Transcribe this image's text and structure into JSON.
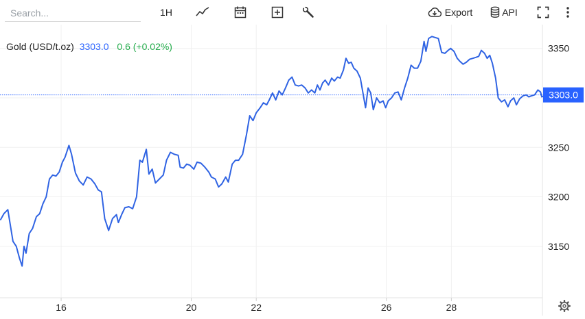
{
  "toolbar": {
    "search_placeholder": "Search...",
    "interval_label": "1H",
    "export_label": "Export",
    "api_label": "API",
    "icons": [
      "line-chart-icon",
      "calendar-icon",
      "add-box-icon",
      "wrench-icon",
      "cloud-download-icon",
      "database-icon",
      "fullscreen-icon",
      "more-vert-icon",
      "gear-icon"
    ]
  },
  "legend": {
    "symbol": "Gold (USD/t.oz)",
    "price": "3303.0",
    "change": "0.6 (+0.02%)",
    "price_color": "#2962ff",
    "change_color": "#22ab4a"
  },
  "current_price_label": "3303.0",
  "colors": {
    "line": "#2f63e3",
    "badge": "#2962ff",
    "grid": "#f0f0f0"
  },
  "chart_data": {
    "type": "line",
    "title": "",
    "xlabel": "",
    "ylabel": "",
    "grid": true,
    "current_value": 3303.0,
    "ylim": [
      3098,
      3374
    ],
    "xlim": [
      14.12,
      30.8
    ],
    "x_ticks": [
      16,
      20,
      22,
      26,
      28
    ],
    "x_tick_labels": [
      "16",
      "20",
      "22",
      "26",
      "28"
    ],
    "y_ticks": [
      3150,
      3200,
      3250,
      3300,
      3350
    ],
    "y_tick_labels": [
      "3150",
      "3200",
      "3250",
      "",
      "3350"
    ],
    "series": [
      {
        "values": [
          [
            14.14,
            3177
          ],
          [
            14.24,
            3183
          ],
          [
            14.36,
            3187
          ],
          [
            14.52,
            3155
          ],
          [
            14.62,
            3150
          ],
          [
            14.72,
            3138
          ],
          [
            14.8,
            3130
          ],
          [
            14.86,
            3150
          ],
          [
            14.92,
            3143
          ],
          [
            15.02,
            3163
          ],
          [
            15.12,
            3168
          ],
          [
            15.24,
            3180
          ],
          [
            15.34,
            3183
          ],
          [
            15.44,
            3193
          ],
          [
            15.54,
            3200
          ],
          [
            15.64,
            3218
          ],
          [
            15.74,
            3222
          ],
          [
            15.84,
            3221
          ],
          [
            15.94,
            3225
          ],
          [
            16.04,
            3235
          ],
          [
            16.12,
            3240
          ],
          [
            16.24,
            3252
          ],
          [
            16.32,
            3243
          ],
          [
            16.44,
            3224
          ],
          [
            16.56,
            3216
          ],
          [
            16.68,
            3212
          ],
          [
            16.8,
            3220
          ],
          [
            16.92,
            3218
          ],
          [
            17.04,
            3213
          ],
          [
            17.14,
            3207
          ],
          [
            17.24,
            3205
          ],
          [
            17.34,
            3178
          ],
          [
            17.46,
            3166
          ],
          [
            17.58,
            3178
          ],
          [
            17.7,
            3182
          ],
          [
            17.76,
            3174
          ],
          [
            17.86,
            3182
          ],
          [
            17.96,
            3189
          ],
          [
            18.08,
            3190
          ],
          [
            18.2,
            3188
          ],
          [
            18.32,
            3200
          ],
          [
            18.42,
            3237
          ],
          [
            18.5,
            3235
          ],
          [
            18.62,
            3248
          ],
          [
            18.7,
            3223
          ],
          [
            18.8,
            3228
          ],
          [
            18.9,
            3214
          ],
          [
            19.02,
            3218
          ],
          [
            19.14,
            3222
          ],
          [
            19.24,
            3237
          ],
          [
            19.36,
            3245
          ],
          [
            19.48,
            3243
          ],
          [
            19.6,
            3242
          ],
          [
            19.66,
            3230
          ],
          [
            19.76,
            3229
          ],
          [
            19.86,
            3233
          ],
          [
            19.96,
            3232
          ],
          [
            20.08,
            3228
          ],
          [
            20.18,
            3235
          ],
          [
            20.3,
            3234
          ],
          [
            20.42,
            3230
          ],
          [
            20.54,
            3225
          ],
          [
            20.62,
            3220
          ],
          [
            20.74,
            3218
          ],
          [
            20.84,
            3210
          ],
          [
            20.94,
            3213
          ],
          [
            21.06,
            3220
          ],
          [
            21.14,
            3215
          ],
          [
            21.26,
            3233
          ],
          [
            21.36,
            3237
          ],
          [
            21.46,
            3237
          ],
          [
            21.58,
            3243
          ],
          [
            21.7,
            3263
          ],
          [
            21.8,
            3282
          ],
          [
            21.9,
            3277
          ],
          [
            22.0,
            3285
          ],
          [
            22.12,
            3290
          ],
          [
            22.22,
            3295
          ],
          [
            22.32,
            3293
          ],
          [
            22.4,
            3298
          ],
          [
            22.5,
            3305
          ],
          [
            22.6,
            3298
          ],
          [
            22.7,
            3307
          ],
          [
            22.8,
            3303
          ],
          [
            22.9,
            3310
          ],
          [
            23.0,
            3318
          ],
          [
            23.1,
            3321
          ],
          [
            23.2,
            3313
          ],
          [
            23.3,
            3312
          ],
          [
            23.4,
            3313
          ],
          [
            23.5,
            3310
          ],
          [
            23.6,
            3305
          ],
          [
            23.7,
            3308
          ],
          [
            23.8,
            3305
          ],
          [
            23.88,
            3313
          ],
          [
            23.96,
            3308
          ],
          [
            24.04,
            3315
          ],
          [
            24.12,
            3318
          ],
          [
            24.22,
            3313
          ],
          [
            24.32,
            3320
          ],
          [
            24.4,
            3317
          ],
          [
            24.5,
            3321
          ],
          [
            24.58,
            3320
          ],
          [
            24.68,
            3328
          ],
          [
            24.76,
            3340
          ],
          [
            24.84,
            3335
          ],
          [
            24.92,
            3336
          ],
          [
            25.0,
            3330
          ],
          [
            25.1,
            3327
          ],
          [
            25.2,
            3320
          ],
          [
            25.28,
            3305
          ],
          [
            25.36,
            3290
          ],
          [
            25.44,
            3310
          ],
          [
            25.52,
            3305
          ],
          [
            25.6,
            3288
          ],
          [
            25.7,
            3300
          ],
          [
            25.8,
            3295
          ],
          [
            25.9,
            3297
          ],
          [
            25.98,
            3290
          ],
          [
            26.06,
            3297
          ],
          [
            26.16,
            3300
          ],
          [
            26.26,
            3305
          ],
          [
            26.36,
            3306
          ],
          [
            26.46,
            3298
          ],
          [
            26.56,
            3310
          ],
          [
            26.66,
            3320
          ],
          [
            26.76,
            3333
          ],
          [
            26.86,
            3330
          ],
          [
            26.96,
            3330
          ],
          [
            27.06,
            3337
          ],
          [
            27.16,
            3357
          ],
          [
            27.22,
            3347
          ],
          [
            27.3,
            3360
          ],
          [
            27.4,
            3362
          ],
          [
            27.5,
            3361
          ],
          [
            27.6,
            3360
          ],
          [
            27.7,
            3346
          ],
          [
            27.8,
            3345
          ],
          [
            27.9,
            3348
          ],
          [
            27.98,
            3350
          ],
          [
            28.08,
            3347
          ],
          [
            28.18,
            3340
          ],
          [
            28.26,
            3337
          ],
          [
            28.36,
            3334
          ],
          [
            28.46,
            3336
          ],
          [
            28.56,
            3339
          ],
          [
            28.66,
            3340
          ],
          [
            28.76,
            3341
          ],
          [
            28.84,
            3342
          ],
          [
            28.92,
            3348
          ],
          [
            29.02,
            3345
          ],
          [
            29.1,
            3340
          ],
          [
            29.18,
            3343
          ],
          [
            29.26,
            3335
          ],
          [
            29.36,
            3320
          ],
          [
            29.44,
            3300
          ],
          [
            29.54,
            3296
          ],
          [
            29.64,
            3298
          ],
          [
            29.74,
            3291
          ],
          [
            29.82,
            3297
          ],
          [
            29.92,
            3300
          ],
          [
            30.0,
            3293
          ],
          [
            30.1,
            3299
          ],
          [
            30.2,
            3302
          ],
          [
            30.3,
            3303
          ],
          [
            30.38,
            3301
          ],
          [
            30.46,
            3302
          ],
          [
            30.56,
            3303
          ],
          [
            30.66,
            3308
          ],
          [
            30.74,
            3306
          ],
          [
            30.78,
            3301
          ],
          [
            30.86,
            3302
          ],
          [
            30.94,
            3303
          ]
        ]
      }
    ]
  }
}
